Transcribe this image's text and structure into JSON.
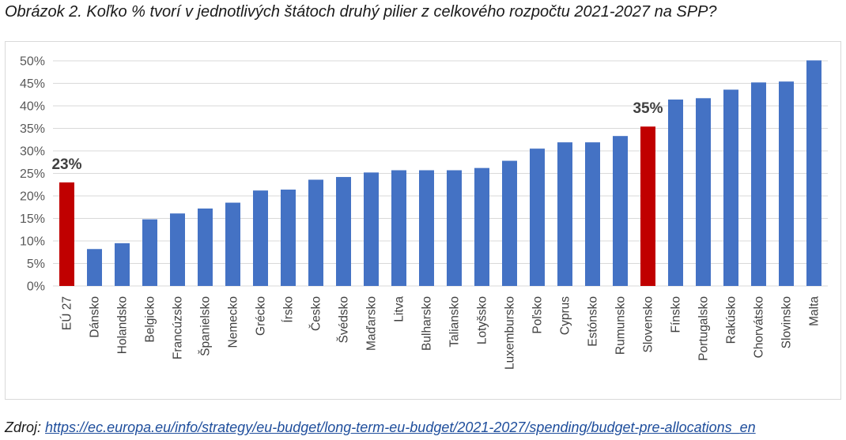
{
  "title": "Obrázok 2. Koľko % tvorí v jednotlivých štátoch druhý pilier z celkového rozpočtu 2021-2027 na SPP?",
  "source": {
    "label": "Zdroj:",
    "url": "https://ec.europa.eu/info/strategy/eu-budget/long-term-eu-budget/2021-2027/spending/budget-pre-allocations_en"
  },
  "colors": {
    "bar": "#4472c4",
    "highlight": "#c00000",
    "grid": "#d9d9d9"
  },
  "chart_data": {
    "type": "bar",
    "title": "",
    "xlabel": "",
    "ylabel": "",
    "ylim": [
      0,
      50
    ],
    "yticks": [
      "0%",
      "5%",
      "10%",
      "15%",
      "20%",
      "25%",
      "30%",
      "35%",
      "40%",
      "45%",
      "50%"
    ],
    "grid": true,
    "legend": "none",
    "categories": [
      "EÚ 27",
      "Dánsko",
      "Holandsko",
      "Belgicko",
      "Francúzsko",
      "Španielsko",
      "Nemecko",
      "Grécko",
      "Írsko",
      "Česko",
      "Švédsko",
      "Maďarsko",
      "Litva",
      "Bulharsko",
      "Taliansko",
      "Lotyšsko",
      "Luxembursko",
      "Poľsko",
      "Cyprus",
      "Estónsko",
      "Rumunsko",
      "Slovensko",
      "Fínsko",
      "Portugalsko",
      "Rakúsko",
      "Chorvátsko",
      "Slovinsko",
      "Malta"
    ],
    "values": [
      23,
      8.2,
      9.5,
      14.8,
      16.1,
      17.2,
      18.5,
      21.2,
      21.4,
      23.6,
      24.2,
      25.2,
      25.7,
      25.7,
      25.7,
      26.2,
      27.8,
      30.5,
      31.9,
      31.9,
      33.3,
      35.4,
      41.4,
      41.7,
      43.6,
      45.2,
      45.4,
      50.1
    ],
    "highlighted": [
      "EÚ 27",
      "Slovensko"
    ],
    "annotations": [
      {
        "category": "EÚ 27",
        "text": "23%"
      },
      {
        "category": "Slovensko",
        "text": "35%"
      }
    ]
  }
}
